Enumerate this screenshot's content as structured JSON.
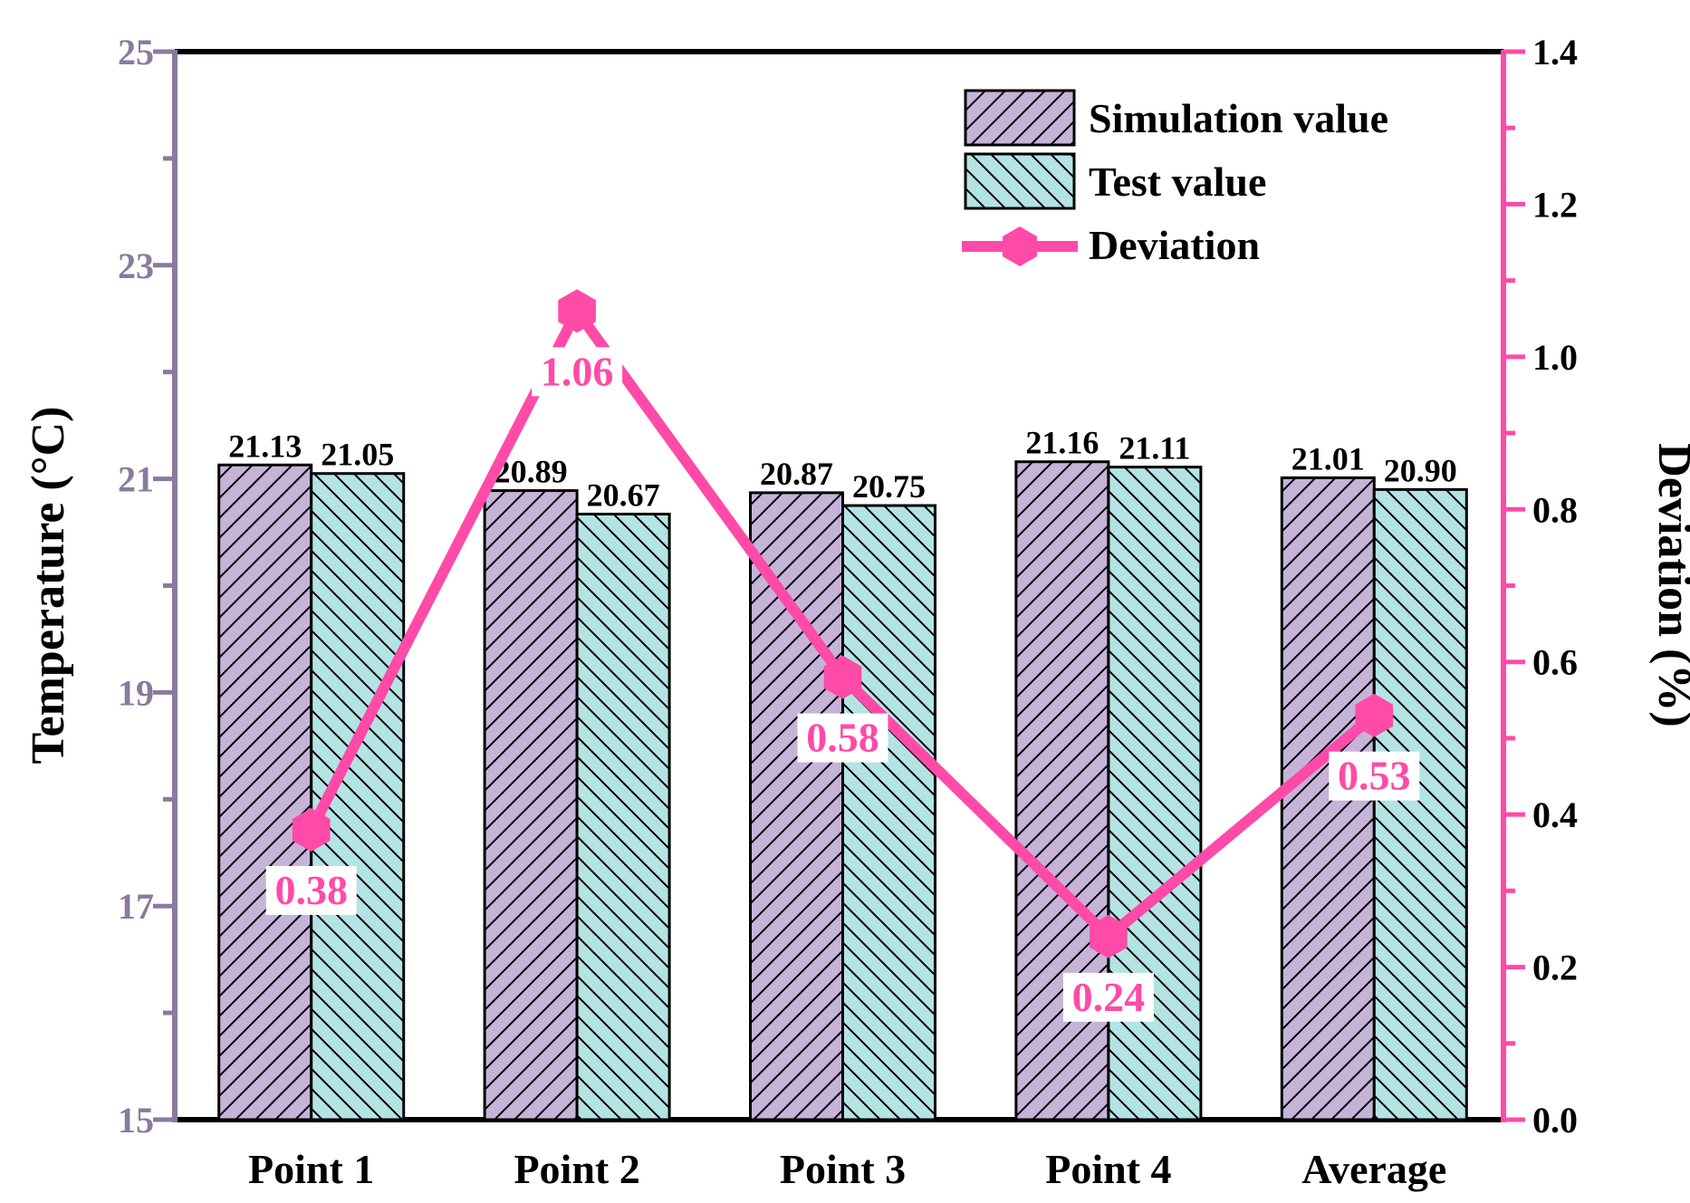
{
  "chart_data": {
    "type": "bar",
    "categories": [
      "Point 1",
      "Point 2",
      "Point 3",
      "Point 4",
      "Average"
    ],
    "series": [
      {
        "name": "Simulation value",
        "values": [
          21.13,
          20.89,
          20.87,
          21.16,
          21.01
        ],
        "labels": [
          "21.13",
          "20.89",
          "20.87",
          "21.16",
          "21.01"
        ],
        "color": "#c5b3d8",
        "hatch": "forward"
      },
      {
        "name": "Test value",
        "values": [
          21.05,
          20.67,
          20.75,
          21.11,
          20.9
        ],
        "labels": [
          "21.05",
          "20.67",
          "20.75",
          "21.11",
          "20.90"
        ],
        "color": "#b4e3e4",
        "hatch": "backward"
      }
    ],
    "line_series": {
      "name": "Deviation",
      "values": [
        0.38,
        1.06,
        0.58,
        0.24,
        0.53
      ],
      "labels": [
        "0.38",
        "1.06",
        "0.58",
        "0.24",
        "0.53"
      ],
      "color": "#ff4aa8",
      "axis": "right"
    },
    "ylabel": "Temperature (°C)",
    "ylim": [
      15,
      25
    ],
    "yticks": [
      "15",
      "17",
      "19",
      "21",
      "23",
      "25"
    ],
    "y2label": "Deviation (%)",
    "y2lim": [
      0,
      1.4
    ],
    "y2ticks": [
      "0.0",
      "0.2",
      "0.4",
      "0.6",
      "0.8",
      "1.0",
      "1.2",
      "1.4"
    ],
    "left_axis_color": "#8a7a9e",
    "right_axis_color": "#ff4aa8",
    "legend_position": "top-right",
    "grid": false
  }
}
